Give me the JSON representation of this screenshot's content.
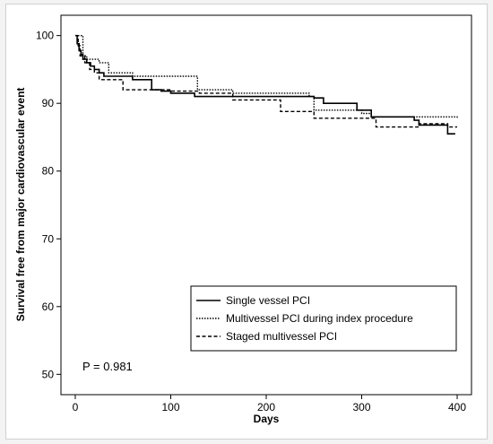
{
  "chart_data": {
    "type": "line",
    "step": true,
    "xlabel": "Days",
    "ylabel": "Survival free from major cardiovascular event",
    "xlim": [
      -15,
      415
    ],
    "ylim": [
      47,
      103
    ],
    "xticks": [
      0,
      100,
      200,
      300,
      400
    ],
    "yticks": [
      50,
      60,
      70,
      80,
      90,
      100
    ],
    "grid": false,
    "legend_position": "bottom-right",
    "annotation": "P = 0.981",
    "series": [
      {
        "name": "Single vessel PCI",
        "line_style": "solid",
        "points": [
          [
            0,
            100
          ],
          [
            2,
            98.8
          ],
          [
            4,
            97.8
          ],
          [
            6,
            97.2
          ],
          [
            8,
            96.5
          ],
          [
            12,
            96.0
          ],
          [
            16,
            95.5
          ],
          [
            20,
            95.0
          ],
          [
            25,
            94.5
          ],
          [
            30,
            94.0
          ],
          [
            60,
            93.5
          ],
          [
            80,
            92.0
          ],
          [
            90,
            91.8
          ],
          [
            100,
            91.5
          ],
          [
            125,
            91.0
          ],
          [
            250,
            90.8
          ],
          [
            260,
            90.0
          ],
          [
            295,
            89.0
          ],
          [
            310,
            88.0
          ],
          [
            355,
            87.5
          ],
          [
            360,
            86.8
          ],
          [
            390,
            85.5
          ],
          [
            398,
            85.5
          ]
        ]
      },
      {
        "name": "Multivessel PCI during index procedure",
        "line_style": "dotted",
        "points": [
          [
            0,
            100
          ],
          [
            8,
            97.0
          ],
          [
            12,
            96.5
          ],
          [
            25,
            96.0
          ],
          [
            35,
            94.5
          ],
          [
            60,
            94.0
          ],
          [
            128,
            92.0
          ],
          [
            165,
            91.5
          ],
          [
            245,
            91.0
          ],
          [
            250,
            89.0
          ],
          [
            300,
            88.5
          ],
          [
            310,
            88.0
          ],
          [
            400,
            87.8
          ]
        ]
      },
      {
        "name": "Staged multivessel PCI",
        "line_style": "dashed",
        "points": [
          [
            0,
            100
          ],
          [
            3,
            98.5
          ],
          [
            5,
            97.0
          ],
          [
            10,
            96.0
          ],
          [
            15,
            95.0
          ],
          [
            20,
            94.5
          ],
          [
            25,
            93.5
          ],
          [
            30,
            93.5
          ],
          [
            50,
            92.0
          ],
          [
            85,
            92.0
          ],
          [
            100,
            91.8
          ],
          [
            130,
            91.5
          ],
          [
            165,
            90.5
          ],
          [
            215,
            88.8
          ],
          [
            250,
            87.8
          ],
          [
            315,
            86.5
          ],
          [
            360,
            87.0
          ],
          [
            390,
            86.5
          ],
          [
            400,
            86.5
          ]
        ]
      }
    ]
  }
}
